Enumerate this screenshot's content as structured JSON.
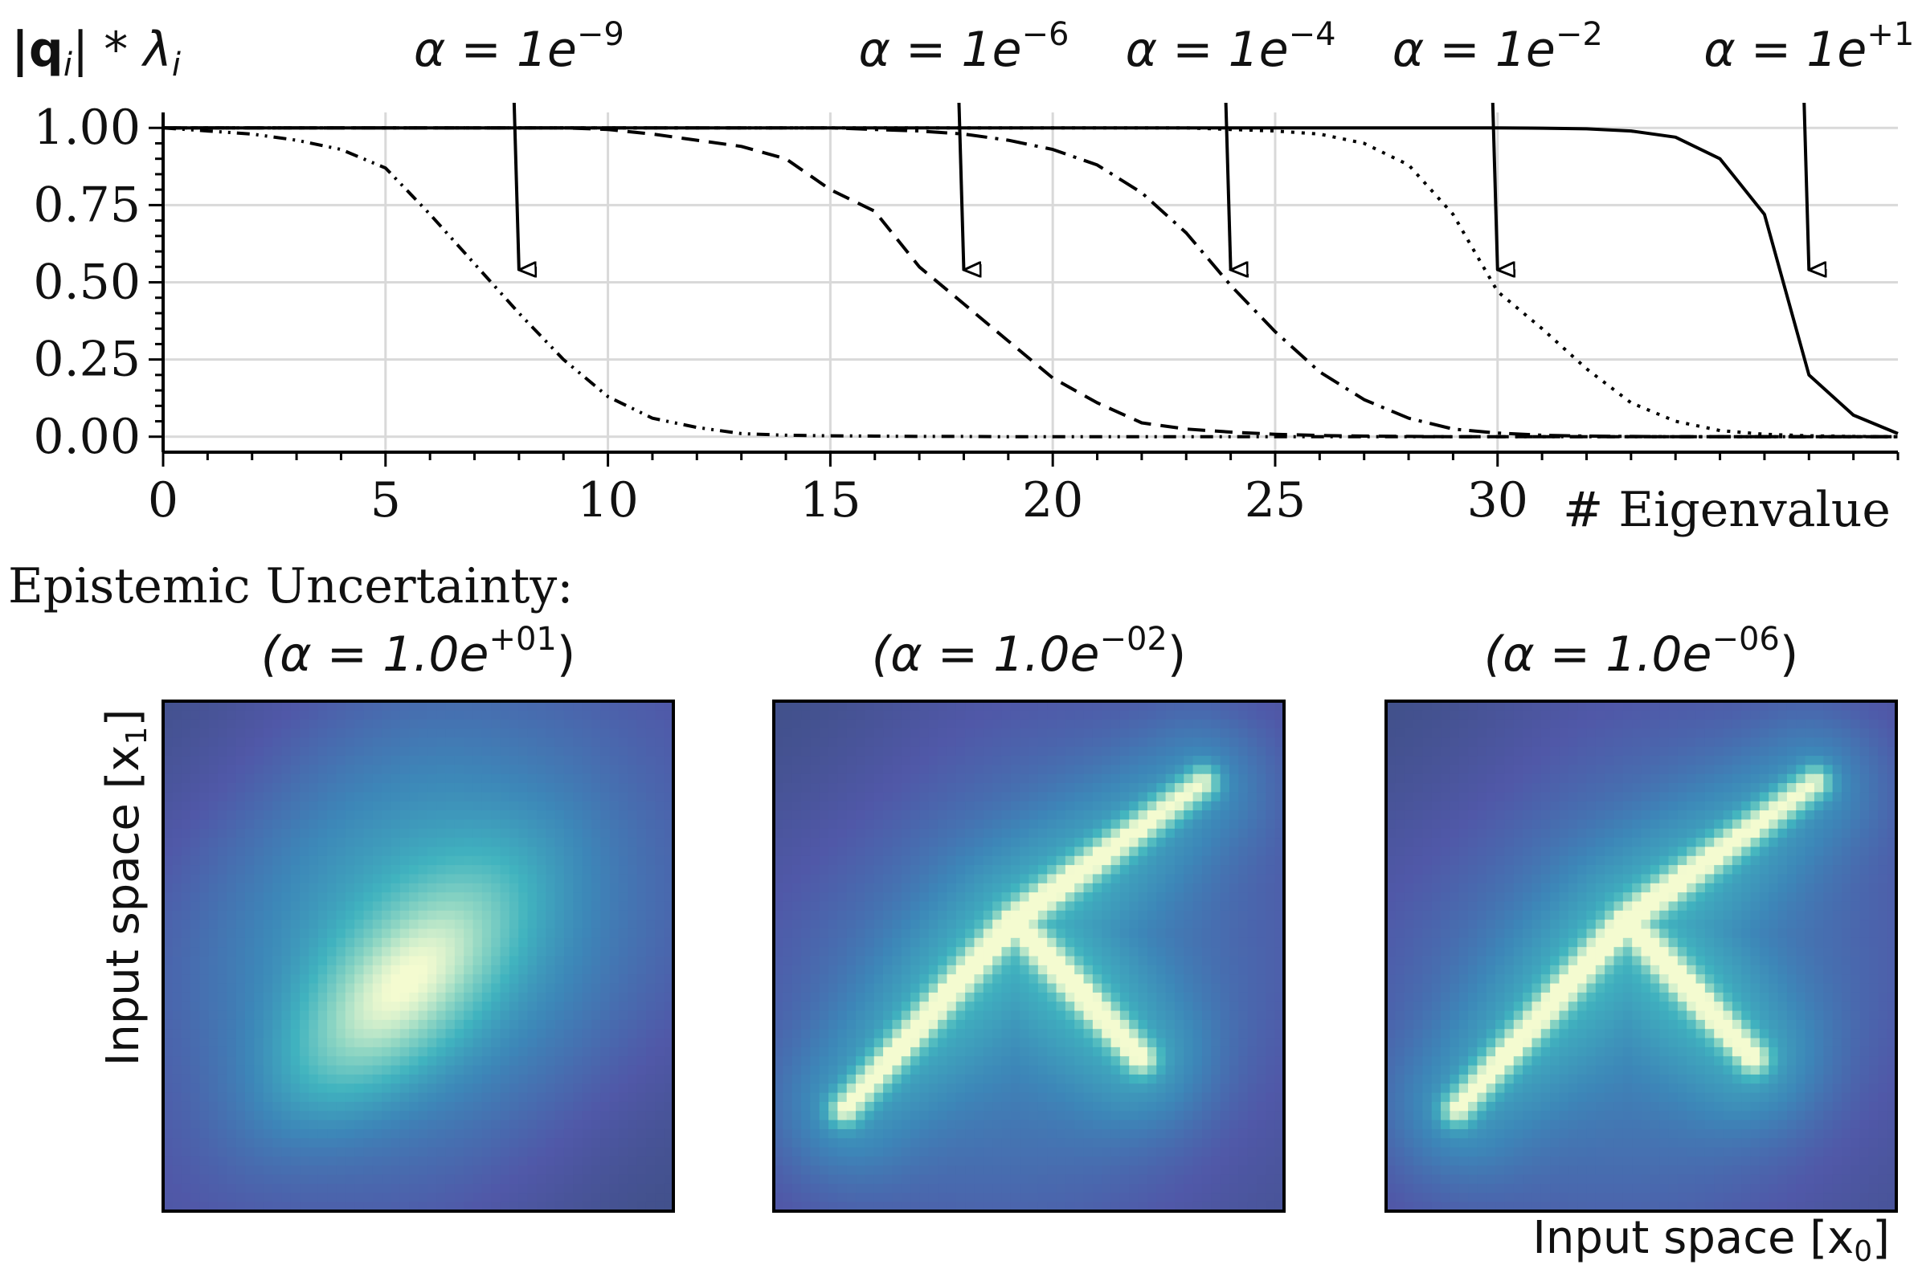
{
  "chart_data": [
    {
      "type": "line",
      "ylabel_base": "|q",
      "ylabel_sub1": "i",
      "ylabel_mid": "| * λ",
      "ylabel_sub2": "i",
      "xlabel": "# Eigenvalue",
      "xlim": [
        0,
        39
      ],
      "ylim": [
        -0.05,
        1.05
      ],
      "xticks": [
        "0",
        "5",
        "10",
        "15",
        "20",
        "25",
        "30"
      ],
      "xtick_values": [
        0,
        5,
        10,
        15,
        20,
        25,
        30
      ],
      "yticks": [
        "0.00",
        "0.25",
        "0.50",
        "0.75",
        "1.00"
      ],
      "ytick_values": [
        0,
        0.25,
        0.5,
        0.75,
        1.0
      ],
      "grid": true,
      "series": [
        {
          "style": "dashdotdot",
          "x": [
            0,
            1,
            2,
            3,
            4,
            5,
            6,
            7,
            8,
            9,
            10,
            11,
            12,
            13,
            14,
            15,
            16,
            17,
            18,
            19,
            20,
            21,
            22,
            23,
            24,
            25,
            26,
            27,
            28,
            29,
            30,
            31,
            32,
            33,
            34,
            35,
            36,
            37,
            38,
            39
          ],
          "y": [
            1.0,
            0.99,
            0.98,
            0.96,
            0.93,
            0.87,
            0.72,
            0.56,
            0.4,
            0.25,
            0.13,
            0.06,
            0.03,
            0.01,
            0.005,
            0.003,
            0.002,
            0.001,
            0.001,
            0,
            0,
            0,
            0,
            0,
            0,
            0,
            0,
            0,
            0,
            0,
            0,
            0,
            0,
            0,
            0,
            0,
            0,
            0,
            0,
            0
          ]
        },
        {
          "style": "dashed",
          "x": [
            0,
            1,
            2,
            3,
            4,
            5,
            6,
            7,
            8,
            9,
            10,
            11,
            12,
            13,
            14,
            15,
            16,
            17,
            18,
            19,
            20,
            21,
            22,
            23,
            24,
            25,
            26,
            27,
            28,
            29,
            30,
            31,
            32,
            33,
            34,
            35,
            36,
            37,
            38,
            39
          ],
          "y": [
            1,
            1,
            1,
            1,
            1,
            1,
            1,
            1,
            1,
            1,
            0.995,
            0.98,
            0.96,
            0.94,
            0.9,
            0.8,
            0.73,
            0.55,
            0.43,
            0.31,
            0.19,
            0.11,
            0.045,
            0.025,
            0.015,
            0.008,
            0.004,
            0.002,
            0.001,
            0,
            0,
            0,
            0,
            0,
            0,
            0,
            0,
            0,
            0,
            0
          ]
        },
        {
          "style": "dashdot",
          "x": [
            0,
            1,
            2,
            3,
            4,
            5,
            6,
            7,
            8,
            9,
            10,
            11,
            12,
            13,
            14,
            15,
            16,
            17,
            18,
            19,
            20,
            21,
            22,
            23,
            24,
            25,
            26,
            27,
            28,
            29,
            30,
            31,
            32,
            33,
            34,
            35,
            36,
            37,
            38,
            39
          ],
          "y": [
            1,
            1,
            1,
            1,
            1,
            1,
            1,
            1,
            1,
            1,
            1,
            1,
            1,
            1,
            1,
            1,
            0.995,
            0.99,
            0.98,
            0.96,
            0.93,
            0.88,
            0.79,
            0.66,
            0.49,
            0.34,
            0.21,
            0.12,
            0.06,
            0.025,
            0.012,
            0.005,
            0.002,
            0.001,
            0,
            0,
            0,
            0,
            0,
            0
          ]
        },
        {
          "style": "dotted",
          "x": [
            0,
            1,
            2,
            3,
            4,
            5,
            6,
            7,
            8,
            9,
            10,
            11,
            12,
            13,
            14,
            15,
            16,
            17,
            18,
            19,
            20,
            21,
            22,
            23,
            24,
            25,
            26,
            27,
            28,
            29,
            30,
            31,
            32,
            33,
            34,
            35,
            36,
            37,
            38,
            39
          ],
          "y": [
            1,
            1,
            1,
            1,
            1,
            1,
            1,
            1,
            1,
            1,
            1,
            1,
            1,
            1,
            1,
            1,
            1,
            1,
            1,
            1,
            1,
            1,
            1,
            1,
            0.995,
            0.99,
            0.98,
            0.95,
            0.88,
            0.72,
            0.47,
            0.35,
            0.22,
            0.11,
            0.05,
            0.02,
            0.008,
            0.003,
            0.001,
            0
          ]
        },
        {
          "style": "solid",
          "x": [
            0,
            5,
            10,
            15,
            20,
            25,
            30,
            31,
            32,
            33,
            34,
            35,
            36,
            37,
            38,
            39
          ],
          "y": [
            1,
            1,
            1,
            1,
            1,
            1,
            1,
            0.999,
            0.997,
            0.99,
            0.97,
            0.9,
            0.72,
            0.2,
            0.07,
            0.01
          ]
        }
      ],
      "annotations": [
        {
          "prefix": "α = 1e",
          "exp": "−9",
          "arrow_x": 8,
          "arrow_y": 0.54
        },
        {
          "prefix": "α = 1e",
          "exp": "−6",
          "arrow_x": 18,
          "arrow_y": 0.54
        },
        {
          "prefix": "α = 1e",
          "exp": "−4",
          "arrow_x": 24,
          "arrow_y": 0.54
        },
        {
          "prefix": "α = 1e",
          "exp": "−2",
          "arrow_x": 30,
          "arrow_y": 0.54
        },
        {
          "prefix": "α = 1e",
          "exp": "+1",
          "arrow_x": 37,
          "arrow_y": 0.54
        }
      ]
    },
    {
      "type": "heatmap",
      "section_title": "Epistemic Uncertainty:",
      "xlabel": "Input space [x",
      "xlabel_sub": "0",
      "xlabel_end": "]",
      "ylabel": "Input space [x",
      "ylabel_sub": "1",
      "ylabel_end": "]",
      "colormap": [
        "#3b4d7e",
        "#5058a8",
        "#3d86b8",
        "#40b3bf",
        "#8fd6c3",
        "#f4fbd0"
      ],
      "panels": [
        {
          "title_prefix": "(α = 1.0e",
          "title_exp": "+01",
          "title_suffix": ")",
          "pattern": "blob"
        },
        {
          "title_prefix": "(α = 1.0e",
          "title_exp": "−02",
          "title_suffix": ")",
          "pattern": "arms"
        },
        {
          "title_prefix": "(α = 1.0e",
          "title_exp": "−06",
          "title_suffix": ")",
          "pattern": "arms"
        }
      ]
    }
  ]
}
